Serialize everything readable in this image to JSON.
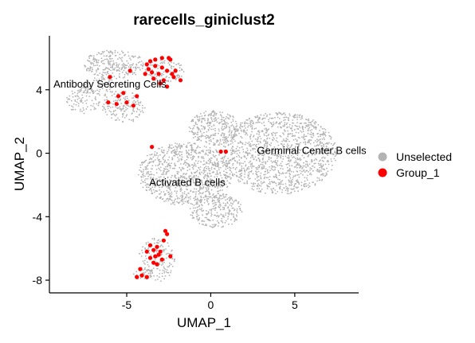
{
  "chart_data": {
    "type": "scatter",
    "title": "rarecells_giniclust2",
    "xlabel": "UMAP_1",
    "ylabel": "UMAP_2",
    "xlim": [
      -9.6,
      8.8
    ],
    "ylim": [
      -8.8,
      7.4
    ],
    "xticks": [
      -5,
      0,
      5
    ],
    "xtick_labels": [
      "-5",
      "0",
      "5"
    ],
    "yticks": [
      -8,
      -4,
      0,
      4
    ],
    "ytick_labels": [
      "-8",
      "-4",
      "0",
      "4"
    ],
    "grid": false,
    "legend_position": "right",
    "legend": [
      {
        "name": "Unselected",
        "color": "#B3B3B3"
      },
      {
        "name": "Group_1",
        "color": "#FF0000"
      }
    ],
    "annotations": [
      {
        "text": "Antibody Secreting Cells",
        "x": -6.0,
        "y": 4.4
      },
      {
        "text": "Germinal Center B cells",
        "x": 6.0,
        "y": 0.2
      },
      {
        "text": "Activated B cells",
        "x": -1.4,
        "y": -1.8
      }
    ],
    "unselected_regions": [
      {
        "cx": -5.7,
        "cy": 5.6,
        "rx": 1.9,
        "ry": 0.9,
        "n": 260
      },
      {
        "cx": -2.7,
        "cy": 5.2,
        "rx": 1.2,
        "ry": 0.7,
        "n": 110
      },
      {
        "cx": -7.6,
        "cy": 3.3,
        "rx": 1.0,
        "ry": 0.8,
        "n": 90
      },
      {
        "cx": -5.2,
        "cy": 2.9,
        "rx": 1.3,
        "ry": 1.0,
        "n": 150
      },
      {
        "cx": -6.6,
        "cy": 4.2,
        "rx": 1.2,
        "ry": 0.6,
        "n": 80
      },
      {
        "cx": 4.1,
        "cy": 0.0,
        "rx": 3.4,
        "ry": 2.6,
        "n": 1300
      },
      {
        "cx": 0.2,
        "cy": 1.6,
        "rx": 1.5,
        "ry": 1.1,
        "n": 300
      },
      {
        "cx": -1.5,
        "cy": -1.3,
        "rx": 2.8,
        "ry": 2.0,
        "n": 900
      },
      {
        "cx": 0.3,
        "cy": -3.6,
        "rx": 1.6,
        "ry": 1.1,
        "n": 260
      },
      {
        "cx": -3.2,
        "cy": -6.7,
        "rx": 1.1,
        "ry": 1.4,
        "n": 160
      },
      {
        "cx": -4.0,
        "cy": -7.6,
        "rx": 0.6,
        "ry": 0.4,
        "n": 40
      }
    ],
    "group_1_points": [
      [
        -3.8,
        5.6
      ],
      [
        -3.7,
        5.3
      ],
      [
        -3.6,
        5.8
      ],
      [
        -3.5,
        5.1
      ],
      [
        -3.3,
        5.5
      ],
      [
        -3.1,
        5.0
      ],
      [
        -2.9,
        5.4
      ],
      [
        -2.6,
        5.2
      ],
      [
        -2.4,
        5.9
      ],
      [
        -2.3,
        5.0
      ],
      [
        -2.5,
        6.0
      ],
      [
        -2.9,
        6.0
      ],
      [
        -3.3,
        5.9
      ],
      [
        -2.1,
        5.2
      ],
      [
        -3.9,
        5.0
      ],
      [
        -3.4,
        4.7
      ],
      [
        -2.8,
        4.6
      ],
      [
        -2.6,
        4.2
      ],
      [
        -3.0,
        4.4
      ],
      [
        -1.8,
        4.6
      ],
      [
        -2.2,
        4.8
      ],
      [
        -4.8,
        5.2
      ],
      [
        -6.0,
        4.8
      ],
      [
        -5.2,
        3.8
      ],
      [
        -5.5,
        3.6
      ],
      [
        -5.0,
        3.2
      ],
      [
        -4.6,
        3.0
      ],
      [
        -6.1,
        3.2
      ],
      [
        -5.6,
        3.1
      ],
      [
        -4.4,
        3.6
      ],
      [
        -3.5,
        0.4
      ],
      [
        0.6,
        0.1
      ],
      [
        0.9,
        0.1
      ],
      [
        -3.6,
        -5.8
      ],
      [
        -3.4,
        -6.1
      ],
      [
        -3.2,
        -5.9
      ],
      [
        -3.0,
        -6.2
      ],
      [
        -3.3,
        -6.5
      ],
      [
        -2.8,
        -5.5
      ],
      [
        -2.6,
        -5.1
      ],
      [
        -2.9,
        -6.7
      ],
      [
        -3.6,
        -6.6
      ],
      [
        -3.2,
        -7.0
      ],
      [
        -2.4,
        -6.5
      ],
      [
        -2.7,
        -4.9
      ],
      [
        -3.8,
        -6.2
      ],
      [
        -4.2,
        -7.3
      ],
      [
        -4.4,
        -7.8
      ],
      [
        -3.8,
        -7.8
      ],
      [
        -3.4,
        -6.9
      ],
      [
        -3.1,
        -6.4
      ],
      [
        -4.1,
        -7.7
      ]
    ]
  }
}
